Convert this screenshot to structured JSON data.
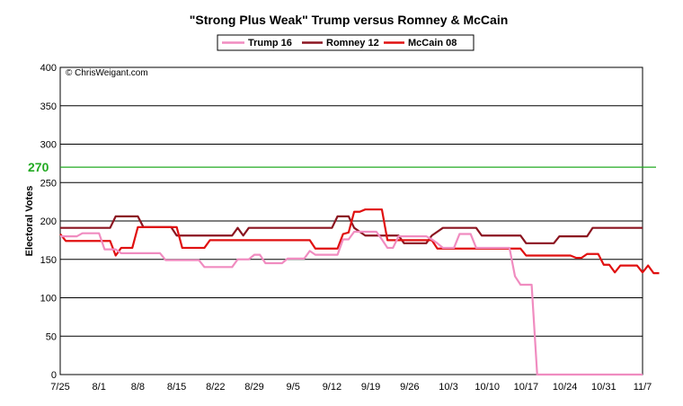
{
  "chart_data": {
    "type": "line",
    "title": "\"Strong Plus Weak\" Trump versus Romney & McCain",
    "ylabel": "Electoral Votes",
    "xlabel": "",
    "ylim": [
      0,
      400
    ],
    "yticks": [
      0,
      50,
      100,
      150,
      200,
      250,
      300,
      350,
      400
    ],
    "xlim": [
      0,
      105
    ],
    "x_tick_positions": [
      0,
      7,
      14,
      21,
      28,
      35,
      42,
      49,
      56,
      63,
      70,
      77,
      84,
      91,
      98,
      105
    ],
    "x_tick_labels": [
      "7/25",
      "8/1",
      "8/8",
      "8/15",
      "8/22",
      "8/29",
      "9/5",
      "9/12",
      "9/19",
      "9/26",
      "10/3",
      "10/10",
      "10/17",
      "10/24",
      "10/31",
      "11/7"
    ],
    "grid": "horizontal",
    "legend_placement": "top-center",
    "copyright": "© ChrisWeigant.com",
    "reference_line": {
      "value": 270,
      "label": "270",
      "color": "#22aa22"
    },
    "series": [
      {
        "name": "Trump 16",
        "color": "#f08cc0",
        "points": [
          [
            0,
            180
          ],
          [
            3,
            180
          ],
          [
            4,
            184
          ],
          [
            7,
            184
          ],
          [
            8,
            163
          ],
          [
            10,
            163
          ],
          [
            11,
            158
          ],
          [
            18,
            158
          ],
          [
            19,
            149
          ],
          [
            25,
            149
          ],
          [
            26,
            140
          ],
          [
            31,
            140
          ],
          [
            32,
            150
          ],
          [
            34,
            150
          ],
          [
            35,
            156
          ],
          [
            36,
            156
          ],
          [
            37,
            145
          ],
          [
            40,
            145
          ],
          [
            41,
            151
          ],
          [
            44,
            151
          ],
          [
            45,
            161
          ],
          [
            46,
            156
          ],
          [
            50,
            156
          ],
          [
            51,
            176
          ],
          [
            52,
            176
          ],
          [
            53,
            186
          ],
          [
            57,
            186
          ],
          [
            58,
            176
          ],
          [
            59,
            165
          ],
          [
            60,
            165
          ],
          [
            61,
            180
          ],
          [
            66,
            180
          ],
          [
            67,
            176
          ],
          [
            68,
            171
          ],
          [
            69,
            165
          ],
          [
            71,
            165
          ],
          [
            72,
            183
          ],
          [
            74,
            183
          ],
          [
            75,
            165
          ],
          [
            81,
            165
          ],
          [
            82,
            128
          ],
          [
            83,
            117
          ],
          [
            85,
            117
          ],
          [
            86,
            0
          ],
          [
            105,
            0
          ]
        ]
      },
      {
        "name": "Romney 12",
        "color": "#8b1520",
        "points": [
          [
            0,
            191
          ],
          [
            9,
            191
          ],
          [
            10,
            206
          ],
          [
            14,
            206
          ],
          [
            15,
            192
          ],
          [
            20,
            192
          ],
          [
            21,
            181
          ],
          [
            31,
            181
          ],
          [
            32,
            191
          ],
          [
            33,
            181
          ],
          [
            34,
            191
          ],
          [
            49,
            191
          ],
          [
            50,
            206
          ],
          [
            52,
            206
          ],
          [
            53,
            191
          ],
          [
            55,
            181
          ],
          [
            61,
            181
          ],
          [
            62,
            171
          ],
          [
            66,
            171
          ],
          [
            67,
            181
          ],
          [
            69,
            191
          ],
          [
            75,
            191
          ],
          [
            76,
            181
          ],
          [
            83,
            181
          ],
          [
            84,
            171
          ],
          [
            89,
            171
          ],
          [
            90,
            180
          ],
          [
            95,
            180
          ],
          [
            96,
            191
          ],
          [
            105,
            191
          ]
        ]
      },
      {
        "name": "McCain 08",
        "color": "#e01010",
        "points": [
          [
            0,
            183
          ],
          [
            1,
            174
          ],
          [
            9,
            174
          ],
          [
            10,
            155
          ],
          [
            11,
            165
          ],
          [
            13,
            165
          ],
          [
            14,
            192
          ],
          [
            21,
            192
          ],
          [
            22,
            165
          ],
          [
            26,
            165
          ],
          [
            27,
            175
          ],
          [
            45,
            175
          ],
          [
            46,
            164
          ],
          [
            50,
            164
          ],
          [
            51,
            183
          ],
          [
            52,
            185
          ],
          [
            53,
            212
          ],
          [
            54,
            212
          ],
          [
            55,
            215
          ],
          [
            58,
            215
          ],
          [
            59,
            175
          ],
          [
            67,
            175
          ],
          [
            68,
            164
          ],
          [
            83,
            164
          ],
          [
            84,
            155
          ],
          [
            92,
            155
          ],
          [
            93,
            152
          ],
          [
            94,
            152
          ],
          [
            95,
            157
          ],
          [
            97,
            157
          ],
          [
            98,
            143
          ],
          [
            99,
            143
          ],
          [
            100,
            133
          ],
          [
            101,
            142
          ],
          [
            104,
            142
          ],
          [
            105,
            133
          ],
          [
            106,
            142
          ],
          [
            107,
            132
          ],
          [
            108,
            132
          ]
        ]
      }
    ]
  }
}
